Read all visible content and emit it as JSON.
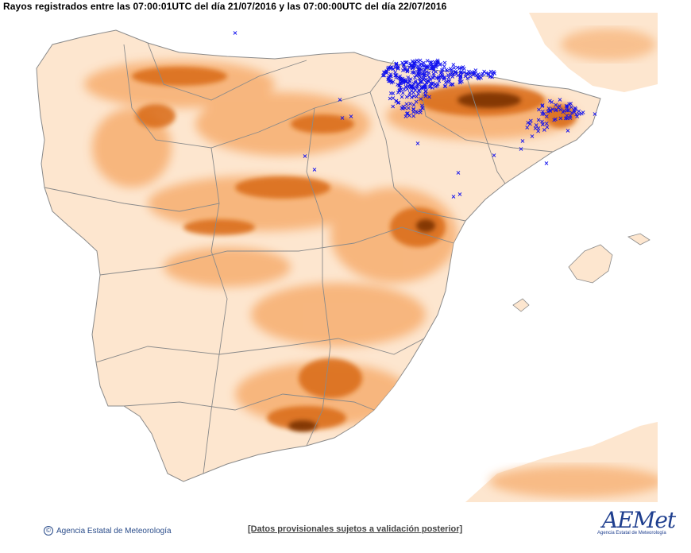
{
  "header": {
    "title": "Rayos registrados entre las 07:00:01UTC del día 21/07/2016 y las 07:00:00UTC del día 22/07/2016"
  },
  "map": {
    "land_color": "#fde6cf",
    "terrain_mid": "#f7b174",
    "terrain_high": "#d96b12",
    "terrain_peak": "#7a3202",
    "border_color": "#8a8a8a",
    "lightning_color": "#1010ee",
    "lightning_icon": "x-mark-icon"
  },
  "footer": {
    "copyright_icon": "copyright-icon",
    "agency": "Agencia Estatal de Meteorología",
    "note": "[Datos provisionales sujetos a validación posterior]",
    "logo_text": "AEMet",
    "logo_sub": "Agencia Estatal de Meteorología"
  }
}
